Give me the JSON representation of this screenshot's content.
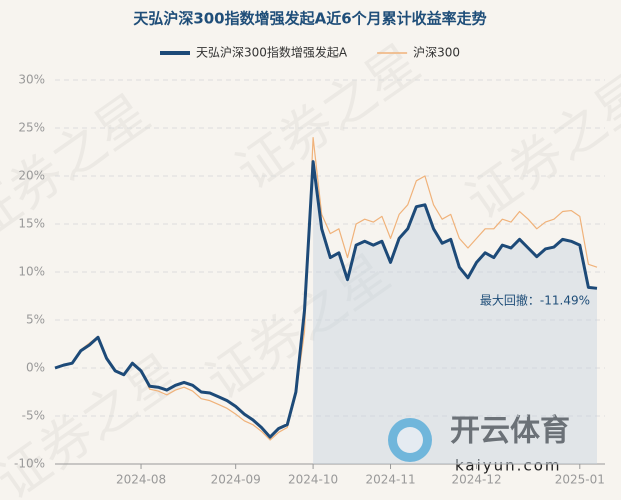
{
  "chart_data": {
    "type": "line",
    "title": "天弘沪深300指数增强发起A近6个月累计收益率走势",
    "annotation": "最大回撤：-11.49%",
    "watermark": "证券之星",
    "logo_text": "开云体育",
    "logo_url": "kaiyun.com",
    "categories": [
      null,
      null,
      null,
      null,
      null,
      null,
      null,
      null,
      null,
      null,
      "2024-08",
      null,
      null,
      null,
      null,
      null,
      null,
      null,
      null,
      null,
      null,
      "2024-09",
      null,
      null,
      null,
      null,
      null,
      null,
      null,
      null,
      "2024-10",
      null,
      null,
      null,
      null,
      null,
      null,
      null,
      null,
      "2024-11",
      null,
      null,
      null,
      null,
      null,
      null,
      null,
      null,
      null,
      "2024-12",
      null,
      null,
      null,
      null,
      null,
      null,
      null,
      null,
      null,
      null,
      null,
      "2025-01",
      null,
      null
    ],
    "series": [
      {
        "name": "天弘沪深300指数增强发起A",
        "color": "#1d4a78",
        "values": [
          0,
          0.3,
          0.5,
          1.8,
          2.4,
          3.2,
          1.0,
          -0.3,
          -0.7,
          0.5,
          -0.3,
          -1.9,
          -2.0,
          -2.3,
          -1.8,
          -1.5,
          -1.8,
          -2.5,
          -2.6,
          -3.0,
          -3.4,
          -4.0,
          -4.8,
          -5.4,
          -6.2,
          -7.2,
          -6.3,
          -5.9,
          -2.5,
          6.0,
          21.5,
          14.5,
          11.5,
          12.0,
          9.2,
          12.8,
          13.2,
          12.8,
          13.2,
          11.0,
          13.5,
          14.5,
          16.8,
          17.0,
          14.5,
          13.0,
          13.4,
          10.5,
          9.4,
          11.0,
          12.0,
          11.5,
          12.8,
          12.5,
          13.4,
          12.5,
          11.6,
          12.4,
          12.6,
          13.4,
          13.2,
          12.8,
          8.4,
          8.3
        ]
      },
      {
        "name": "沪深300",
        "color": "#f0b27a",
        "values": [
          0,
          0.2,
          0.6,
          1.9,
          2.6,
          3.3,
          1.0,
          -0.2,
          -0.6,
          0.6,
          -0.2,
          -2.2,
          -2.4,
          -2.8,
          -2.3,
          -2.0,
          -2.4,
          -3.2,
          -3.4,
          -3.8,
          -4.2,
          -4.8,
          -5.5,
          -5.9,
          -6.6,
          -7.5,
          -6.7,
          -6.2,
          -2.8,
          3.8,
          24.0,
          16.0,
          14.0,
          14.5,
          11.5,
          15.0,
          15.5,
          15.2,
          15.8,
          13.5,
          16.0,
          17.0,
          19.5,
          20.0,
          17.0,
          15.5,
          16.0,
          13.5,
          12.5,
          13.5,
          14.5,
          14.5,
          15.5,
          15.2,
          16.3,
          15.5,
          14.5,
          15.2,
          15.5,
          16.3,
          16.4,
          15.8,
          10.8,
          10.5
        ]
      }
    ],
    "ylim": [
      -10,
      30
    ],
    "yticks": [
      {
        "value": -10,
        "label": "-10%"
      },
      {
        "value": -5,
        "label": "-5%"
      },
      {
        "value": 0,
        "label": "0%"
      },
      {
        "value": 5,
        "label": "5%"
      },
      {
        "value": 10,
        "label": "10%"
      },
      {
        "value": 15,
        "label": "15%"
      },
      {
        "value": 20,
        "label": "20%"
      },
      {
        "value": 25,
        "label": "25%"
      },
      {
        "value": 30,
        "label": "30%"
      }
    ],
    "grid": true
  }
}
